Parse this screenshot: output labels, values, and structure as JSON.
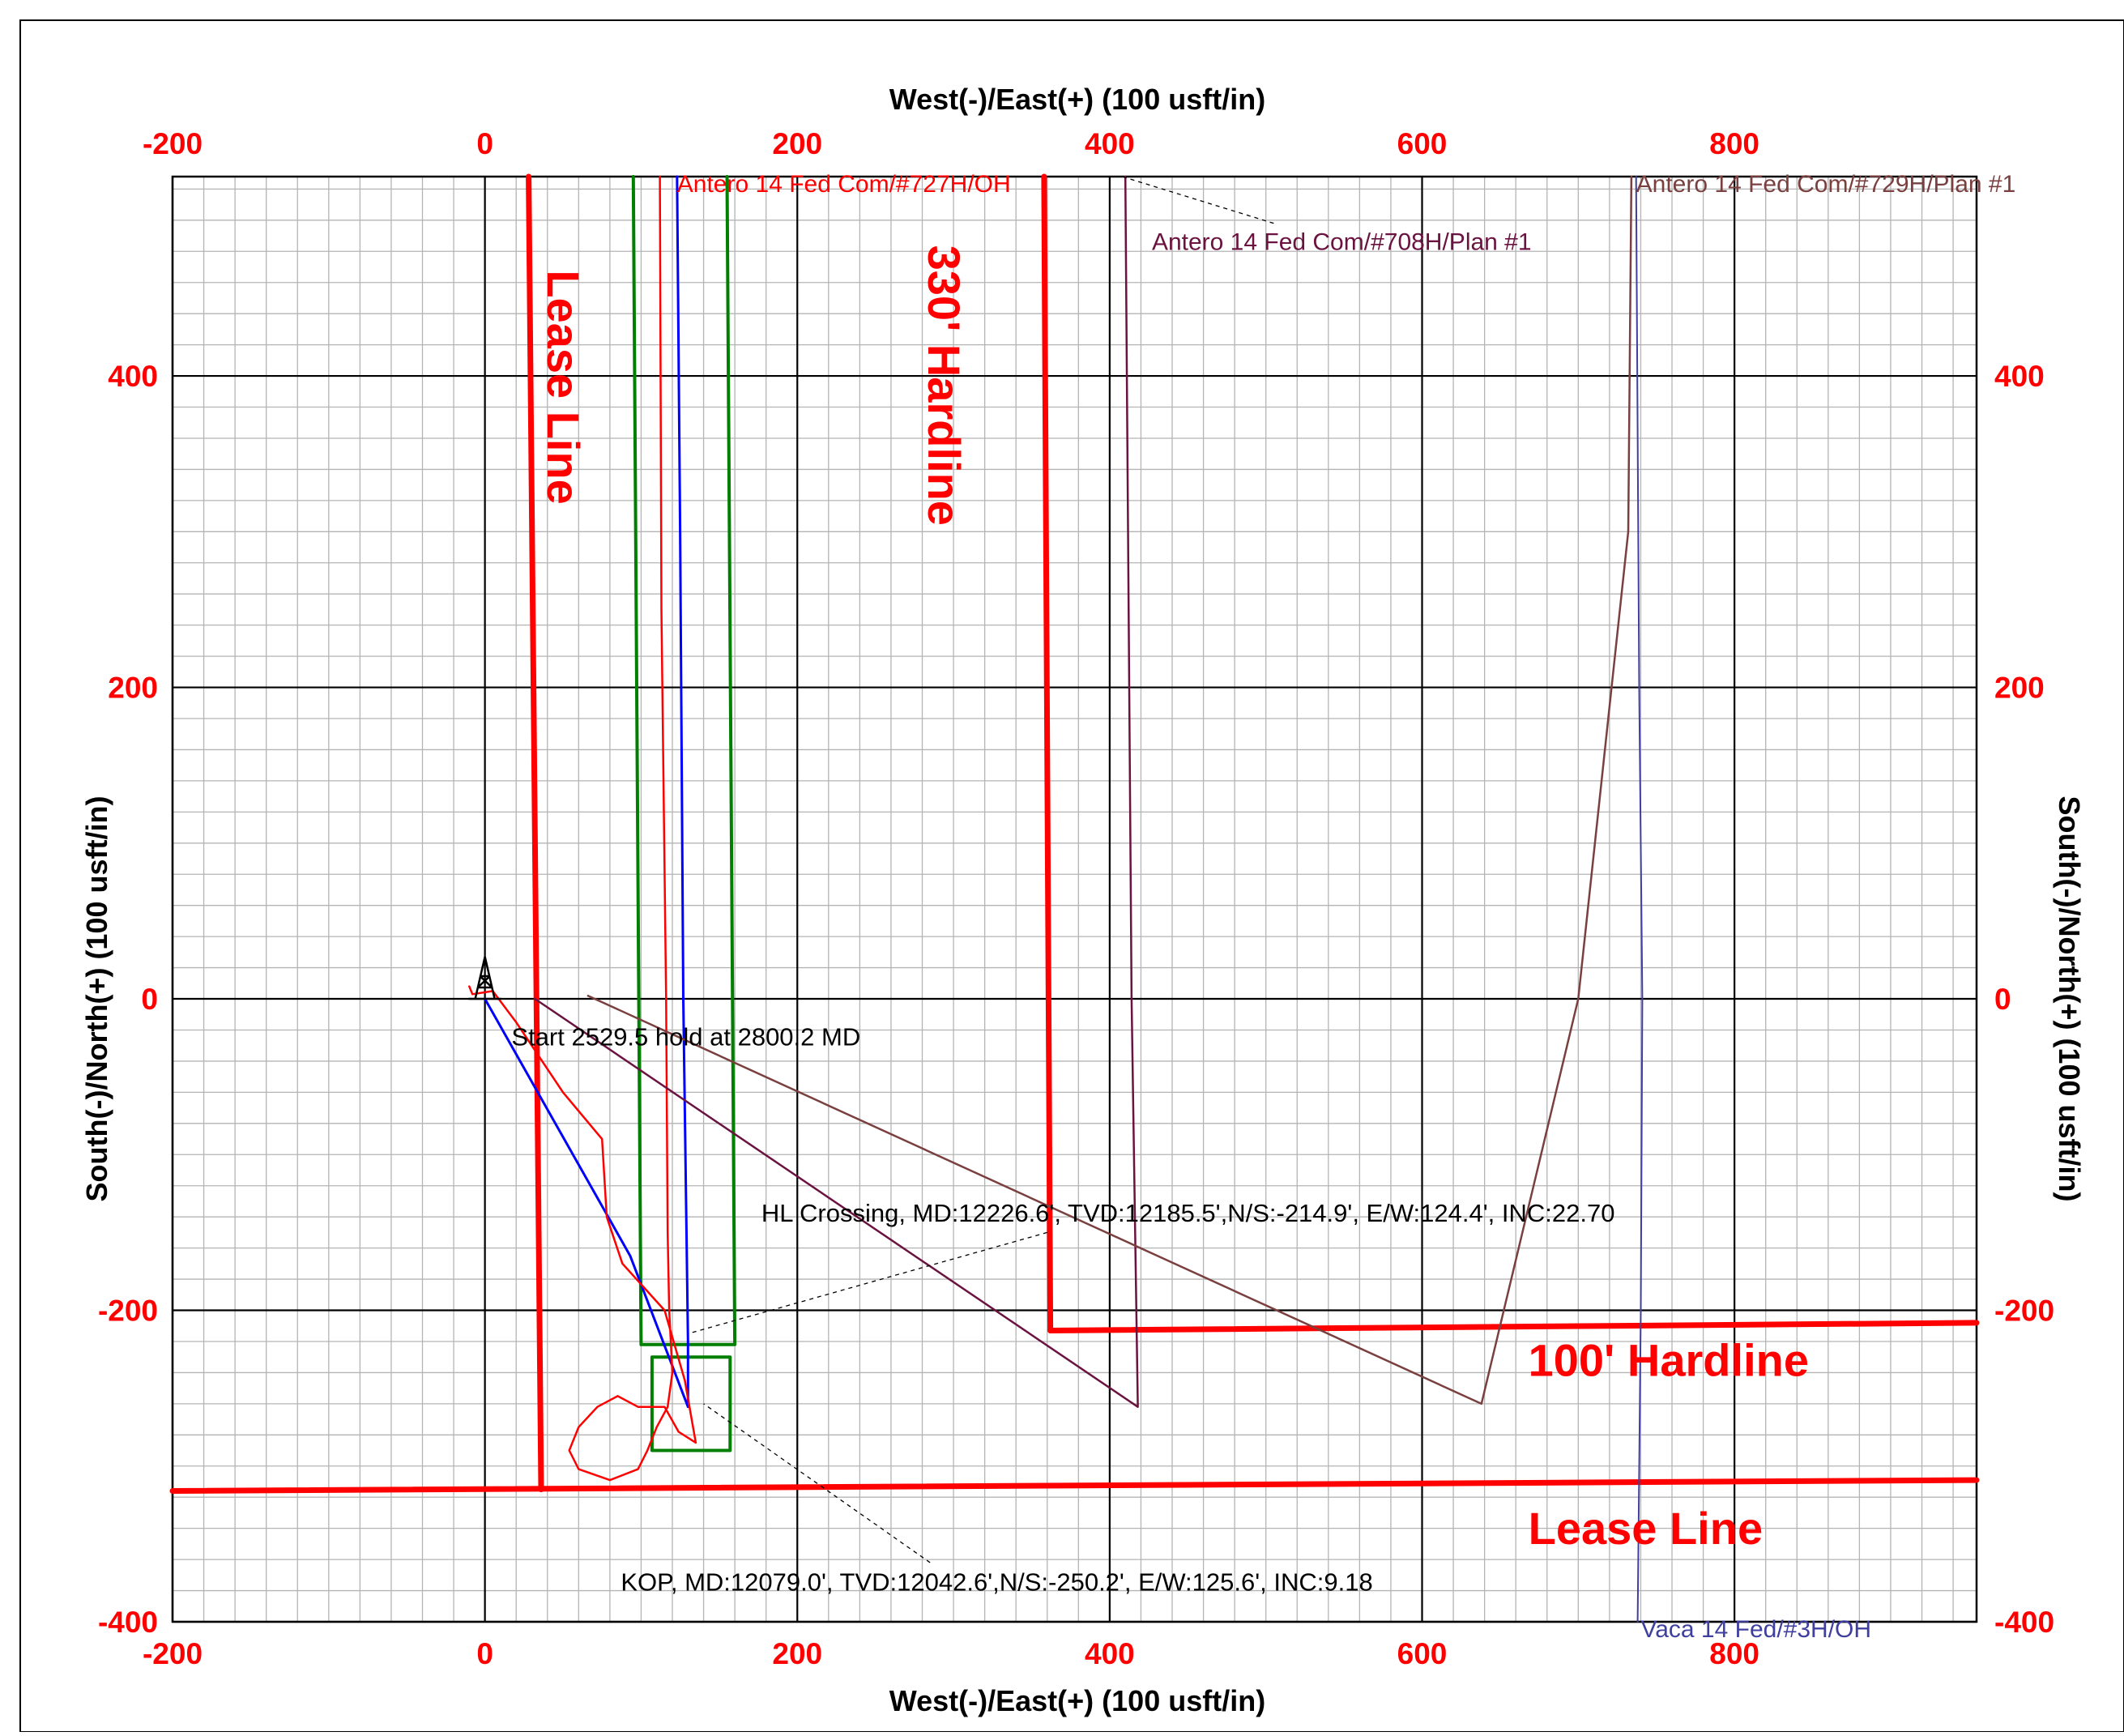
{
  "chart_data": {
    "type": "line",
    "title": "",
    "xlabel_top": "West(-)/East(+) (100 usft/in)",
    "xlabel_bottom": "West(-)/East(+) (100 usft/in)",
    "ylabel_left": "South(-)/North(+) (100 usft/in)",
    "ylabel_right": "South(-)/North(+) (100 usft/in)",
    "xlim": [
      -200,
      955
    ],
    "ylim": [
      -400,
      528
    ],
    "x_ticks": [
      -200,
      0,
      200,
      400,
      600,
      800
    ],
    "y_ticks": [
      -400,
      -200,
      0,
      200,
      400
    ],
    "x_tick_labels": [
      "-200",
      "0",
      "200",
      "400",
      "600",
      "800"
    ],
    "y_tick_labels": [
      "-400",
      "-200",
      "0",
      "200",
      "400"
    ],
    "x_minor_step": 20,
    "y_minor_step": 20,
    "grid": true,
    "colors": {
      "grid_minor": "#b4b4b4",
      "grid_major": "#000000",
      "tick_label": "#ff0000",
      "lease": "#ff0000",
      "box": "#007f00",
      "plan_727": "#0000ff",
      "actual_727": "#ff0000",
      "w708": "#6b1340",
      "w729": "#7a4040",
      "vaca": "#3f3f9f"
    },
    "series": [
      {
        "key": "lease_west",
        "name": "",
        "color": "#ff0000",
        "width": 7,
        "points": [
          [
            28,
            528
          ],
          [
            36,
            -315
          ]
        ]
      },
      {
        "key": "lease_south",
        "name": "",
        "color": "#ff0000",
        "width": 7,
        "points": [
          [
            -200,
            -316
          ],
          [
            955,
            -309
          ]
        ]
      },
      {
        "key": "hard330",
        "name": "",
        "color": "#ff0000",
        "width": 7,
        "points": [
          [
            358,
            528
          ],
          [
            362,
            -213
          ]
        ]
      },
      {
        "key": "hard100",
        "name": "",
        "color": "#ff0000",
        "width": 7,
        "points": [
          [
            362,
            -213
          ],
          [
            955,
            -208
          ]
        ]
      },
      {
        "key": "box_outer",
        "name": "",
        "color": "#007f00",
        "width": 4,
        "points": [
          [
            95,
            528
          ],
          [
            100,
            -222
          ],
          [
            160,
            -222
          ],
          [
            155,
            528
          ]
        ]
      },
      {
        "key": "box_inner",
        "name": "",
        "color": "#007f00",
        "width": 4,
        "points": [
          [
            107,
            -230
          ],
          [
            157,
            -230
          ],
          [
            157,
            -290
          ],
          [
            107,
            -290
          ],
          [
            107,
            -230
          ]
        ]
      },
      {
        "key": "plan727",
        "name": "",
        "color": "#0000ff",
        "width": 3,
        "points": [
          [
            0,
            0
          ],
          [
            93,
            -165
          ],
          [
            130,
            -262
          ],
          [
            130,
            -220
          ],
          [
            127,
            0
          ],
          [
            125,
            300
          ],
          [
            123,
            528
          ]
        ]
      },
      {
        "key": "actual727",
        "name": "",
        "color": "#ff0000",
        "width": 2.5,
        "points": [
          [
            -10,
            8
          ],
          [
            -8,
            3
          ],
          [
            5,
            5
          ],
          [
            20,
            -15
          ],
          [
            50,
            -60
          ],
          [
            75,
            -90
          ],
          [
            78,
            -140
          ],
          [
            88,
            -170
          ],
          [
            115,
            -200
          ],
          [
            128,
            -245
          ],
          [
            135,
            -285
          ],
          [
            124,
            -278
          ],
          [
            115,
            -262
          ],
          [
            98,
            -262
          ],
          [
            85,
            -255
          ],
          [
            72,
            -262
          ],
          [
            60,
            -275
          ],
          [
            54,
            -290
          ],
          [
            60,
            -302
          ],
          [
            80,
            -309
          ],
          [
            98,
            -302
          ],
          [
            104,
            -290
          ],
          [
            110,
            -275
          ],
          [
            117,
            -262
          ],
          [
            120,
            -240
          ],
          [
            118,
            -200
          ],
          [
            117,
            -150
          ],
          [
            116,
            0
          ],
          [
            113,
            250
          ],
          [
            112,
            528
          ]
        ]
      },
      {
        "key": "w708",
        "name": "Antero 14 Fed Com/#708H/Plan #1",
        "color": "#6b1340",
        "width": 2.5,
        "points": [
          [
            32,
            0
          ],
          [
            418,
            -262
          ],
          [
            414,
            0
          ],
          [
            410,
            528
          ]
        ]
      },
      {
        "key": "w729",
        "name": "Antero 14 Fed Com/#729H/Plan #1",
        "color": "#7a4040",
        "width": 2.5,
        "points": [
          [
            66,
            2
          ],
          [
            638,
            -260
          ],
          [
            700,
            0
          ],
          [
            732,
            300
          ],
          [
            734,
            528
          ]
        ]
      },
      {
        "key": "vaca",
        "name": "Vaca 14 Fed/#3H/OH",
        "color": "#3f3f9f",
        "width": 2,
        "points": [
          [
            737,
            528
          ],
          [
            739,
            200
          ],
          [
            741,
            0
          ],
          [
            740,
            -200
          ],
          [
            738,
            -400
          ]
        ]
      }
    ],
    "rig": {
      "x": 0,
      "y": 0
    },
    "labels": [
      {
        "key": "l727",
        "text": "Antero 14 Fed Com/#727H/OH",
        "color": "#ff0000",
        "at": [
          123,
          518
        ],
        "anchor": "start",
        "leader_to": null
      },
      {
        "key": "l729",
        "text": "Antero 14 Fed Com/#729H/Plan #1",
        "color": "#7a4040",
        "at": [
          737,
          518
        ],
        "anchor": "start",
        "leader_to": null
      },
      {
        "key": "l708",
        "text": "Antero 14 Fed Com/#708H/Plan #1",
        "color": "#6b1340",
        "at": [
          427,
          481
        ],
        "anchor": "start",
        "leader_to": [
          408,
          528
        ],
        "leader_from": [
          505,
          498
        ]
      },
      {
        "key": "lvaca",
        "text": "Vaca 14 Fed/#3H/OH",
        "color": "#3f3f9f",
        "at": [
          740,
          -410
        ],
        "anchor": "start",
        "leader_to": null
      }
    ],
    "annotations": [
      {
        "key": "start_hold",
        "text": "Start 2529.5 hold at 2800.2 MD",
        "at": [
          17,
          -30
        ],
        "leader_from": null,
        "leader_to": null
      },
      {
        "key": "hl_crossing",
        "text": "HL Crossing, MD:12226.6', TVD:12185.5',N/S:-214.9', E/W:124.4', INC:22.70",
        "at": [
          177,
          -143
        ],
        "leader_from": [
          360,
          -150
        ],
        "leader_to": [
          130,
          -215
        ]
      },
      {
        "key": "kop",
        "text": "KOP, MD:12079.0', TVD:12042.6',N/S:-250.2', E/W:125.6', INC:9.18",
        "at": [
          87,
          -380
        ],
        "leader_from": [
          285,
          -362
        ],
        "leader_to": [
          140,
          -260
        ]
      }
    ],
    "region_labels": [
      {
        "key": "lease_line_vert",
        "text": "Lease Line",
        "at": [
          40,
          468
        ],
        "rotate": 90,
        "size": 56
      },
      {
        "key": "hard330_label",
        "text": "330' Hardline",
        "at": [
          284,
          484
        ],
        "rotate": 90,
        "size": 56
      },
      {
        "key": "hard100_label",
        "text": "100' Hardline",
        "at": [
          668,
          -242
        ],
        "rotate": 0,
        "size": 56
      },
      {
        "key": "lease_line_horiz",
        "text": "Lease Line",
        "at": [
          668,
          -350
        ],
        "rotate": 0,
        "size": 56
      }
    ]
  }
}
